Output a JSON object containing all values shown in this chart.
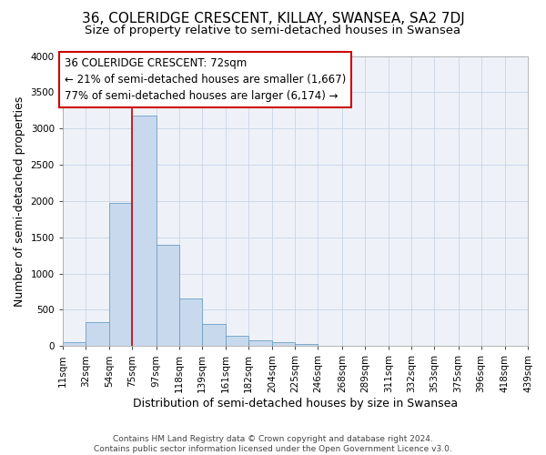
{
  "title": "36, COLERIDGE CRESCENT, KILLAY, SWANSEA, SA2 7DJ",
  "subtitle": "Size of property relative to semi-detached houses in Swansea",
  "xlabel": "Distribution of semi-detached houses by size in Swansea",
  "ylabel": "Number of semi-detached properties",
  "bin_labels": [
    "11sqm",
    "32sqm",
    "54sqm",
    "75sqm",
    "97sqm",
    "118sqm",
    "139sqm",
    "161sqm",
    "182sqm",
    "204sqm",
    "225sqm",
    "246sqm",
    "268sqm",
    "289sqm",
    "311sqm",
    "332sqm",
    "353sqm",
    "375sqm",
    "396sqm",
    "418sqm",
    "439sqm"
  ],
  "bar_values": [
    50,
    325,
    1975,
    3175,
    1400,
    650,
    310,
    140,
    75,
    50,
    25,
    0,
    0,
    0,
    0,
    0,
    0,
    0,
    0,
    0
  ],
  "bin_edges": [
    11,
    32,
    54,
    75,
    97,
    118,
    139,
    161,
    182,
    204,
    225,
    246,
    268,
    289,
    311,
    332,
    353,
    375,
    396,
    418,
    439
  ],
  "property_line_x": 75,
  "bar_color": "#c9d9ed",
  "bar_edge_color": "#6a9ec5",
  "line_color": "#cc0000",
  "annotation_text": "36 COLERIDGE CRESCENT: 72sqm\n← 21% of semi-detached houses are smaller (1,667)\n77% of semi-detached houses are larger (6,174) →",
  "annotation_box_color": "#ffffff",
  "annotation_box_edge": "#cc0000",
  "ylim": [
    0,
    4000
  ],
  "yticks": [
    0,
    500,
    1000,
    1500,
    2000,
    2500,
    3000,
    3500,
    4000
  ],
  "footer1": "Contains HM Land Registry data © Crown copyright and database right 2024.",
  "footer2": "Contains public sector information licensed under the Open Government Licence v3.0.",
  "title_fontsize": 11,
  "subtitle_fontsize": 9.5,
  "xlabel_fontsize": 9,
  "ylabel_fontsize": 9,
  "tick_fontsize": 7.5,
  "annotation_fontsize": 8.5,
  "footer_fontsize": 6.5
}
